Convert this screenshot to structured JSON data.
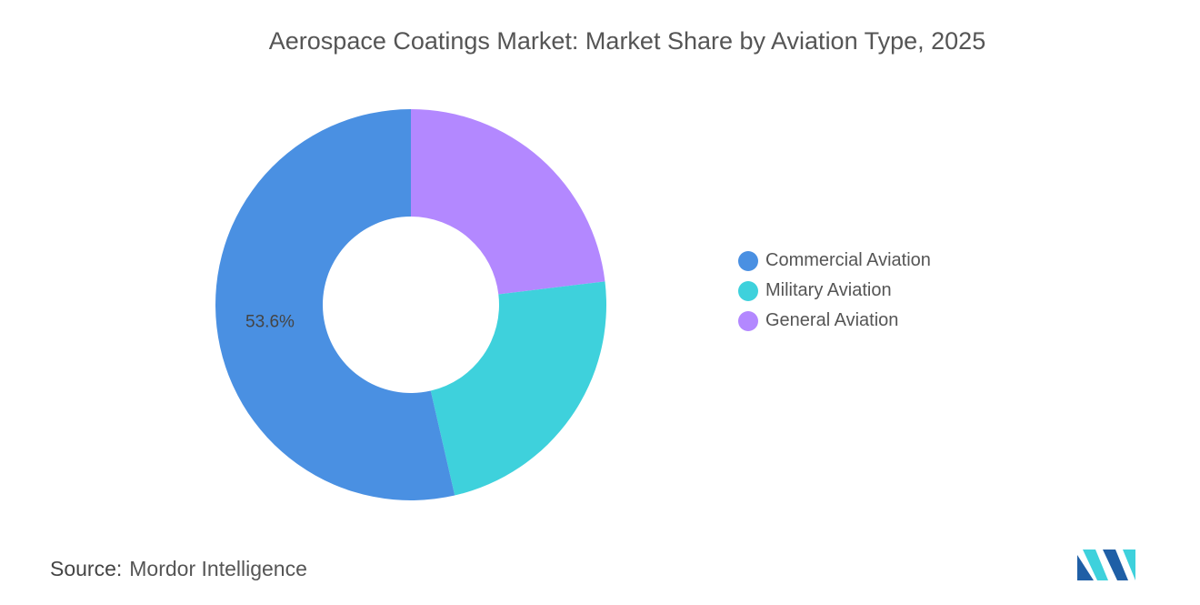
{
  "chart_data": {
    "type": "pie",
    "variant": "donut",
    "title": "Aerospace Coatings Market: Market Share by Aviation Type, 2025",
    "categories": [
      "General Aviation",
      "Military Aviation",
      "Commercial Aviation"
    ],
    "values": [
      23.1,
      23.3,
      53.6
    ],
    "colors": [
      "#B388FF",
      "#3ED1DC",
      "#4A90E2"
    ],
    "data_labels": [
      "",
      "",
      "53.6%"
    ],
    "legend": {
      "placement": "right",
      "entries": [
        {
          "label": "Commercial Aviation",
          "color": "#4A90E2"
        },
        {
          "label": "Military Aviation",
          "color": "#3ED1DC"
        },
        {
          "label": "General Aviation",
          "color": "#B388FF"
        }
      ]
    }
  },
  "source": {
    "label": "Source:",
    "value": "Mordor Intelligence"
  },
  "logo": {
    "text": "Mordor Intelligence logo",
    "colors": [
      "#1F5FA6",
      "#3ED1DC"
    ]
  }
}
